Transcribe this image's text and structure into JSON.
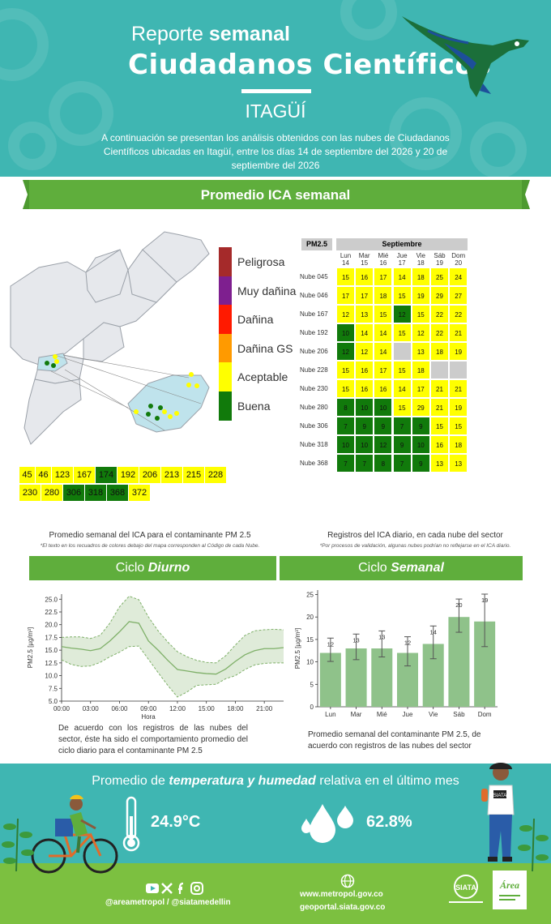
{
  "header": {
    "title_light": "Reporte ",
    "title_bold": "semanal",
    "subtitle": "Ciudadanos Científicos",
    "city": "ITAGÜÍ",
    "intro": "A continuación se presentan los análisis obtenidos con las nubes de Ciudadanos Científicos ubicadas en Itagüí, entre los días 14 de septiembre del 2026 y 20 de septiembre del 2026"
  },
  "ica_section": {
    "title": "Promedio ICA semanal",
    "legend": [
      {
        "label": "Peligrosa",
        "color": "#a52a2a"
      },
      {
        "label": "Muy dañina",
        "color": "#7e1f8f"
      },
      {
        "label": "Dañina",
        "color": "#ff1a00"
      },
      {
        "label": "Dañina GS",
        "color": "#ff9a00"
      },
      {
        "label": "Aceptable",
        "color": "#ffff00"
      },
      {
        "label": "Buena",
        "color": "#117a0b"
      }
    ],
    "stations_row1": [
      {
        "id": "45",
        "q": "a"
      },
      {
        "id": "46",
        "q": "a"
      },
      {
        "id": "123",
        "q": "a"
      },
      {
        "id": "167",
        "q": "a"
      },
      {
        "id": "174",
        "q": "b"
      },
      {
        "id": "192",
        "q": "a"
      },
      {
        "id": "206",
        "q": "a"
      },
      {
        "id": "213",
        "q": "a"
      },
      {
        "id": "215",
        "q": "a"
      },
      {
        "id": "228",
        "q": "a"
      }
    ],
    "stations_row2": [
      {
        "id": "230",
        "q": "a"
      },
      {
        "id": "280",
        "q": "a"
      },
      {
        "id": "306",
        "q": "b"
      },
      {
        "id": "318",
        "q": "b"
      },
      {
        "id": "368",
        "q": "b"
      },
      {
        "id": "372",
        "q": "a"
      }
    ],
    "caption_left": "Promedio semanal del ICA para el contaminante PM 2.5",
    "caption_left_note": "*El texto en los recuadros de colores debajo del mapa corresponden al Código de cada Nube.",
    "caption_right": "Registros del ICA diario, en cada nube del sector",
    "caption_right_note": "*Por procesos de validación, algunas nubes podrían no reflejarse en el ICA diario."
  },
  "daily_table": {
    "pollutant": "PM2.5",
    "month": "Septiembre",
    "days": [
      {
        "name": "Lun",
        "num": "14"
      },
      {
        "name": "Mar",
        "num": "15"
      },
      {
        "name": "Mié",
        "num": "16"
      },
      {
        "name": "Jue",
        "num": "17"
      },
      {
        "name": "Vie",
        "num": "18"
      },
      {
        "name": "Sáb",
        "num": "19"
      },
      {
        "name": "Dom",
        "num": "20"
      }
    ],
    "rows": [
      {
        "label": "Nube 045",
        "values": [
          "15",
          "16",
          "17",
          "14",
          "18",
          "25",
          "24"
        ],
        "q": [
          "a",
          "a",
          "a",
          "a",
          "a",
          "a",
          "a"
        ]
      },
      {
        "label": "Nube 046",
        "values": [
          "17",
          "17",
          "18",
          "15",
          "19",
          "29",
          "27"
        ],
        "q": [
          "a",
          "a",
          "a",
          "a",
          "a",
          "a",
          "a"
        ]
      },
      {
        "label": "Nube 167",
        "values": [
          "12",
          "13",
          "15",
          "12",
          "15",
          "22",
          "22"
        ],
        "q": [
          "a",
          "a",
          "a",
          "b",
          "a",
          "a",
          "a"
        ]
      },
      {
        "label": "Nube 192",
        "values": [
          "10",
          "14",
          "14",
          "15",
          "12",
          "22",
          "21"
        ],
        "q": [
          "b",
          "a",
          "a",
          "a",
          "a",
          "a",
          "a"
        ]
      },
      {
        "label": "Nube 206",
        "values": [
          "12",
          "12",
          "14",
          "",
          "13",
          "18",
          "19"
        ],
        "q": [
          "b",
          "a",
          "a",
          "n",
          "a",
          "a",
          "a"
        ]
      },
      {
        "label": "Nube 228",
        "values": [
          "15",
          "16",
          "17",
          "15",
          "18",
          "",
          ""
        ],
        "q": [
          "a",
          "a",
          "a",
          "a",
          "a",
          "n",
          "n"
        ]
      },
      {
        "label": "Nube 230",
        "values": [
          "15",
          "16",
          "16",
          "14",
          "17",
          "21",
          "21"
        ],
        "q": [
          "a",
          "a",
          "a",
          "a",
          "a",
          "a",
          "a"
        ]
      },
      {
        "label": "Nube 280",
        "values": [
          "8",
          "10",
          "10",
          "15",
          "29",
          "21",
          "19"
        ],
        "q": [
          "b",
          "b",
          "b",
          "a",
          "a",
          "a",
          "a"
        ]
      },
      {
        "label": "Nube 306",
        "values": [
          "7",
          "9",
          "9",
          "7",
          "9",
          "15",
          "15"
        ],
        "q": [
          "b",
          "b",
          "b",
          "b",
          "b",
          "a",
          "a"
        ]
      },
      {
        "label": "Nube 318",
        "values": [
          "10",
          "10",
          "12",
          "9",
          "10",
          "16",
          "18"
        ],
        "q": [
          "b",
          "b",
          "b",
          "b",
          "b",
          "a",
          "a"
        ]
      },
      {
        "label": "Nube 368",
        "values": [
          "7",
          "7",
          "8",
          "7",
          "9",
          "13",
          "13"
        ],
        "q": [
          "b",
          "b",
          "b",
          "b",
          "b",
          "a",
          "a"
        ]
      }
    ]
  },
  "diurnal": {
    "tab_light": "Ciclo ",
    "tab_bold": "Diurno",
    "description": "De acuerdo con los registros de las nubes del sector, éste ha sido el comportamiento promedio del ciclo diario para el contaminante PM 2.5",
    "chart_data": {
      "type": "line",
      "xlabel": "Hora",
      "ylabel": "PM2.5 [µg/m³]",
      "xticks": [
        "00:00",
        "03:00",
        "06:00",
        "09:00",
        "12:00",
        "15:00",
        "18:00",
        "21:00"
      ],
      "yticks": [
        "5.0",
        "7.5",
        "10.0",
        "12.5",
        "15.0",
        "17.5",
        "20.0",
        "22.5",
        "25.0"
      ],
      "ylim": [
        5,
        26
      ],
      "xlim": [
        0,
        23
      ],
      "x": [
        0,
        1,
        2,
        3,
        4,
        5,
        6,
        7,
        8,
        9,
        10,
        11,
        12,
        13,
        14,
        15,
        16,
        17,
        18,
        19,
        20,
        21,
        22,
        23
      ],
      "mean": [
        15.7,
        15.4,
        15.2,
        14.9,
        15.3,
        16.8,
        18.6,
        20.6,
        20.3,
        16.8,
        15.0,
        13.0,
        11.2,
        10.9,
        10.6,
        10.4,
        10.3,
        11.3,
        12.8,
        14.1,
        14.9,
        15.3,
        15.3,
        15.5
      ],
      "upper": [
        17.5,
        17.6,
        17.6,
        17.3,
        17.9,
        20.3,
        23.5,
        25.6,
        24.9,
        21.5,
        18.8,
        16.6,
        14.7,
        13.7,
        13.0,
        12.6,
        12.5,
        13.9,
        16.0,
        17.9,
        18.8,
        19.0,
        19.1,
        19.0
      ],
      "lower": [
        13.1,
        12.2,
        11.8,
        11.9,
        12.6,
        13.7,
        14.6,
        15.7,
        15.8,
        13.2,
        10.6,
        8.1,
        5.8,
        6.8,
        8.1,
        8.2,
        8.3,
        9.4,
        10.0,
        11.2,
        12.1,
        12.4,
        12.5,
        12.5
      ],
      "color": "#7fb069"
    }
  },
  "weekly": {
    "tab_light": "Ciclo ",
    "tab_bold": "Semanal",
    "description": "Promedio semanal del contaminante PM 2.5, de acuerdo con registros de las nubes del sector",
    "chart_data": {
      "type": "bar",
      "ylabel": "PM2.5 [µg/m³]",
      "categories": [
        "Lun",
        "Mar",
        "Mié",
        "Jue",
        "Vie",
        "Sáb",
        "Dom"
      ],
      "values": [
        12,
        13,
        13,
        12,
        14,
        20,
        19
      ],
      "value_labels": [
        "12",
        "13",
        "13",
        "12",
        "14",
        "20",
        "19"
      ],
      "err_low": [
        10.1,
        10.5,
        11.1,
        9.1,
        10.7,
        16.6,
        13.4
      ],
      "err_high": [
        15.3,
        16.2,
        16.9,
        15.6,
        18.0,
        24.0,
        25.1
      ],
      "yticks": [
        "0",
        "5",
        "10",
        "15",
        "20",
        "25"
      ],
      "ylim": [
        0,
        26
      ],
      "color": "#8fc28a"
    }
  },
  "footer": {
    "th_title_1": "Promedio de ",
    "th_title_bold": "temperatura y humedad",
    "th_title_2": " relativa en el último mes",
    "temperature": "24.9°C",
    "humidity": "62.8%",
    "social_handles": "@areametropol / @siatamedellin",
    "url1": "www.metropol.gov.co",
    "url2": "geoportal.siata.gov.co",
    "siata_logo": "SIATA",
    "area_logo": "Área"
  }
}
